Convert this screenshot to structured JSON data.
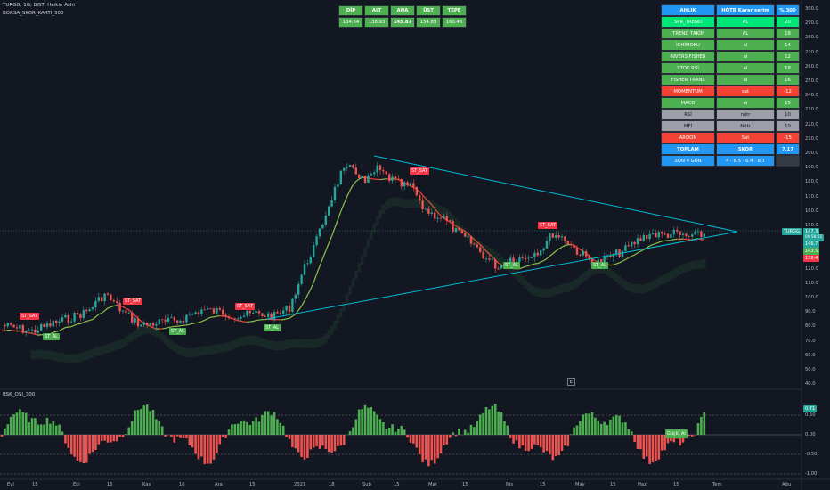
{
  "header": {
    "symbol_line": "TURGG, 1G, BIST, Heikin Ashi",
    "indicator_line": "BORSA_SKOR_KARTI_300",
    "osc_title": "BSK_OSI_300",
    "e_button": "E"
  },
  "pivot_table": {
    "headers": [
      "DİP",
      "ALT",
      "ANA",
      "ÜST",
      "TEPE"
    ],
    "values": [
      "134.64",
      "138.93",
      "145.87",
      "154.89",
      "160.46"
    ]
  },
  "score_table": {
    "headers": [
      "AHLIK",
      "HÖTR Karar serim",
      "%.300"
    ],
    "rows": [
      {
        "name": "SPR_TREND",
        "signal": "AL",
        "value": "20",
        "type": "buy_strong"
      },
      {
        "name": "TREND TAKİP",
        "signal": "AL",
        "value": "18",
        "type": "buy"
      },
      {
        "name": "İCHİMOKU",
        "signal": "al",
        "value": "14",
        "type": "buy"
      },
      {
        "name": "INVERS FISHER",
        "signal": "al",
        "value": "12",
        "type": "buy"
      },
      {
        "name": "STOK.RSİ",
        "signal": "al",
        "value": "18",
        "type": "buy"
      },
      {
        "name": "FISHER TRANS",
        "signal": "al",
        "value": "16",
        "type": "buy"
      },
      {
        "name": "MOMENTUM",
        "signal": "sat",
        "value": "-12",
        "type": "sell"
      },
      {
        "name": "MACD",
        "signal": "al",
        "value": "15",
        "type": "buy"
      },
      {
        "name": "RSİ",
        "signal": "nötr",
        "value": "10",
        "type": "neutral"
      },
      {
        "name": "MFİ",
        "signal": "Nötr",
        "value": "10",
        "type": "neutral"
      },
      {
        "name": "AROON",
        "signal": "Sat",
        "value": "-15",
        "type": "sell"
      }
    ],
    "total": {
      "name": "TOPLAM",
      "signal": "SKOR",
      "value": "7.17"
    },
    "last": {
      "name": "SON 4 GÜN",
      "signal": "4 · 6.5 · 6.4 · 8.7",
      "value": ""
    }
  },
  "price_axis": [
    "300.0",
    "290.0",
    "280.0",
    "270.0",
    "260.0",
    "250.0",
    "240.0",
    "230.0",
    "220.0",
    "210.0",
    "200.0",
    "190.0",
    "180.0",
    "170.0",
    "160.0",
    "150.0",
    "140.0",
    "130.0",
    "120.0",
    "110.0",
    "100.0",
    "90.0",
    "80.0",
    "70.0",
    "60.0",
    "50.0",
    "40.0"
  ],
  "price_labels": {
    "symbol": "TURGG",
    "last": "147.3",
    "countdown": "0h 58:51",
    "v2": "146.7",
    "v3": "143.5",
    "v4": "138.4"
  },
  "osc_axis": [
    "0.50",
    "0.00",
    "-0.50",
    "-1.00"
  ],
  "osc_labels": {
    "current": "0.71",
    "signal_box": "Güçlü Al"
  },
  "time_axis": [
    "Eyl",
    "15",
    "Eki",
    "15",
    "Kas",
    "16",
    "Ara",
    "15",
    "2021",
    "18",
    "Şub",
    "15",
    "Mar",
    "15",
    "Nis",
    "15",
    "May",
    "15",
    "Haz",
    "15",
    "Tem",
    "Ağu"
  ],
  "signals": [
    {
      "text": "ST_SAT",
      "type": "sell"
    },
    {
      "text": "ST_AL",
      "type": "buy"
    },
    {
      "text": "ST_SAT",
      "type": "sell"
    },
    {
      "text": "ST_AL",
      "type": "buy"
    },
    {
      "text": "ST_SAT",
      "type": "sell"
    },
    {
      "text": "ST_AL",
      "type": "buy"
    },
    {
      "text": "ST_SAT",
      "type": "sell"
    },
    {
      "text": "ST_AL",
      "type": "buy"
    },
    {
      "text": "ST_SAT",
      "type": "sell"
    },
    {
      "text": "ST_AL",
      "type": "buy"
    }
  ],
  "colors": {
    "up": "#26a69a",
    "down": "#ef5350",
    "buy": "#4caf50",
    "buy_strong": "#00e676",
    "sell": "#f44336",
    "neutral": "#9e9ea8",
    "blue": "#2196f3",
    "trend": "#00bcd4"
  }
}
